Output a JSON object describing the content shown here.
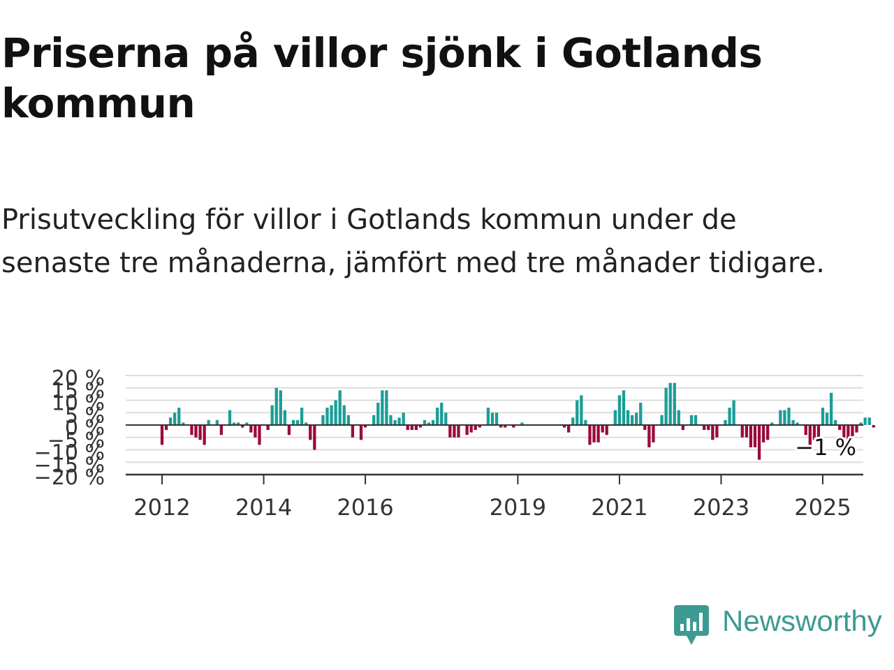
{
  "title": "Priserna på villor sjönk i Gotlands kommun",
  "subtitle": "Prisutveckling för villor i Gotlands kommun under de senaste tre månaderna, jämfört med tre månader tidigare.",
  "brand": "Newsworthy",
  "colors": {
    "positive": "#1a9e96",
    "negative": "#9b0a3c",
    "brand": "#3d9a93",
    "grid": "#dddddd",
    "axis": "#333333"
  },
  "chart_data": {
    "type": "bar",
    "x_ticks": [
      "2012",
      "2014",
      "2016",
      "2019",
      "2021",
      "2023",
      "2025"
    ],
    "y_ticks": [
      "20 %",
      "15 %",
      "10 %",
      "5 %",
      "0 %",
      "−5 %",
      "−10 %",
      "−15 %",
      "−20 %"
    ],
    "ylim": [
      -20,
      20
    ],
    "start": "2012-01",
    "unit": "%",
    "last_value_label": "−1 %",
    "values": [
      -8,
      -2,
      3,
      5,
      7,
      1,
      0,
      -4,
      -5,
      -6,
      -8,
      2,
      0,
      2,
      -4,
      0,
      6,
      1,
      1,
      -1,
      1,
      -3,
      -5,
      -8,
      0,
      -2,
      8,
      15,
      14,
      6,
      -4,
      2,
      2,
      7,
      1,
      -6,
      -10,
      0,
      4,
      7,
      8,
      10,
      14,
      8,
      4,
      -5,
      0,
      -6,
      -1,
      0,
      4,
      9,
      14,
      14,
      4,
      2,
      3,
      5,
      -2,
      -2,
      -2,
      -1,
      2,
      1,
      2,
      7,
      9,
      5,
      -5,
      -5,
      -5,
      0,
      -4,
      -3,
      -2,
      -1,
      0,
      7,
      5,
      5,
      -1,
      -1,
      0,
      -1,
      0,
      1,
      0,
      0,
      0,
      0,
      0,
      0,
      0,
      0,
      0,
      -1,
      -3,
      3,
      10,
      12,
      2,
      -8,
      -7,
      -7,
      -3,
      -4,
      0,
      6,
      12,
      14,
      6,
      4,
      5,
      9,
      -2,
      -9,
      -7,
      0,
      4,
      15,
      17,
      17,
      6,
      -2,
      0,
      4,
      4,
      0,
      -2,
      -2,
      -6,
      -5,
      0,
      2,
      7,
      10,
      0,
      -5,
      -5,
      -9,
      -9,
      -14,
      -7,
      -6,
      1,
      0,
      6,
      6,
      7,
      2,
      1,
      0,
      -4,
      -8,
      -6,
      -6,
      7,
      5,
      13,
      2,
      -2,
      -5,
      -8,
      -5,
      -3,
      1,
      3,
      3,
      -1
    ]
  }
}
